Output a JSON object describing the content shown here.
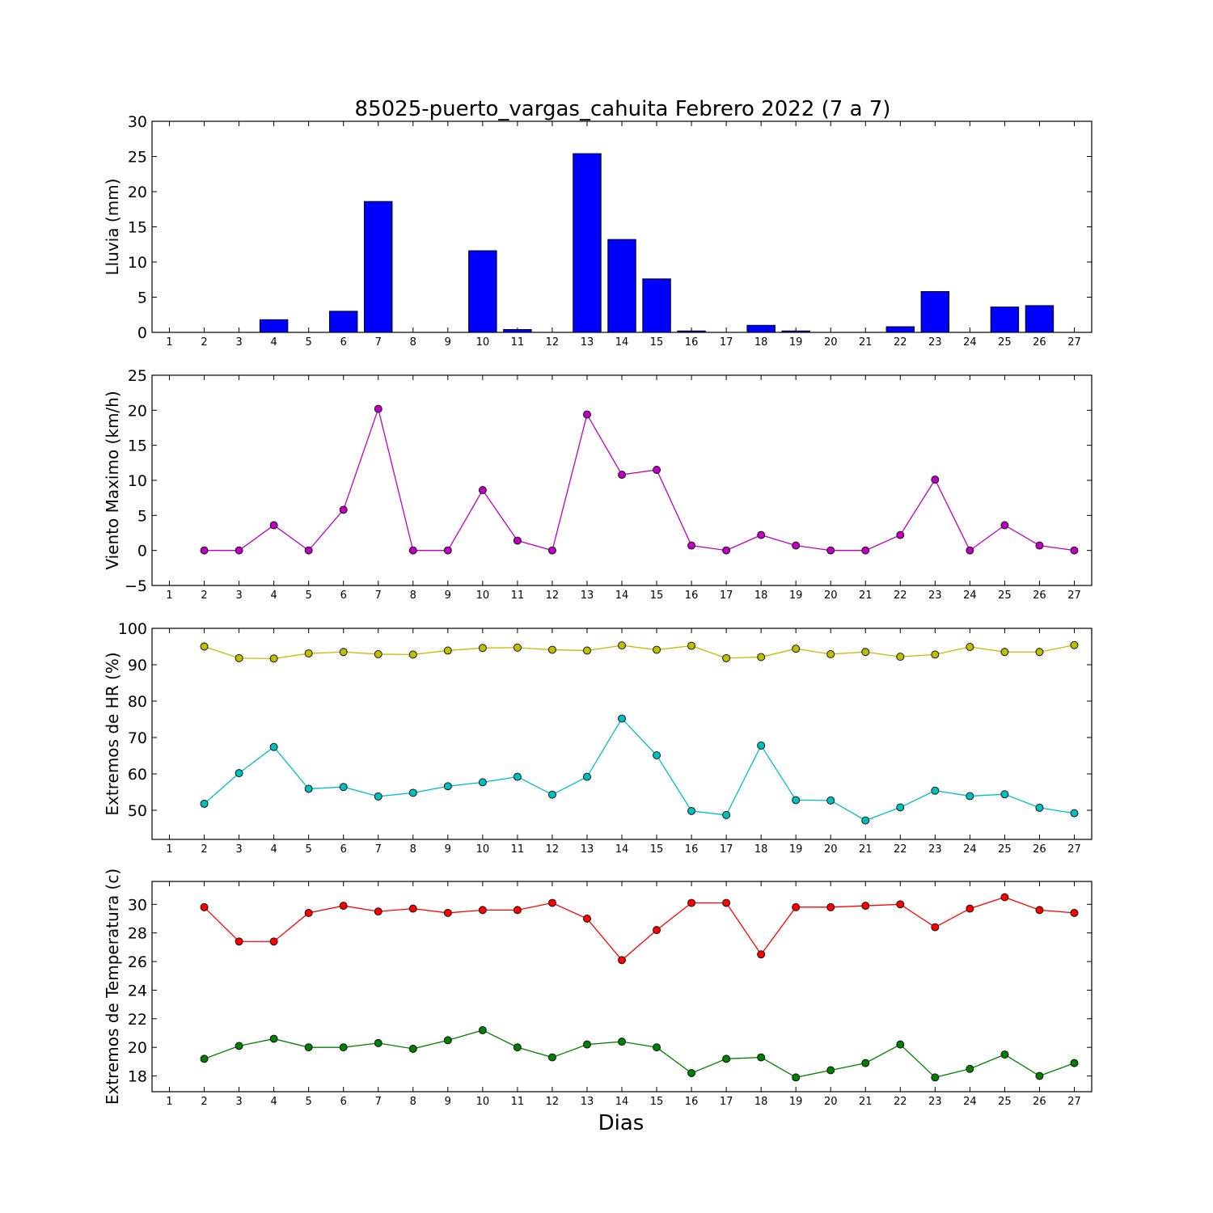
{
  "chart_data": {
    "title": "85025-puerto_vargas_cahuita Febrero 2022  (7 a 7)",
    "xlabel": "Dias",
    "x_ticks": [
      1,
      2,
      3,
      4,
      5,
      6,
      7,
      8,
      9,
      10,
      11,
      12,
      13,
      14,
      15,
      16,
      17,
      18,
      19,
      20,
      21,
      22,
      23,
      24,
      25,
      26,
      27
    ],
    "panels": [
      {
        "type": "bar",
        "ylabel": "Lluvia (mm)",
        "ylim": [
          0,
          30
        ],
        "yticks": [
          0,
          5,
          10,
          15,
          20,
          25,
          30
        ],
        "series": [
          {
            "color": "#0000ff",
            "x": [
              2,
              3,
              4,
              5,
              6,
              7,
              8,
              9,
              10,
              11,
              12,
              13,
              14,
              15,
              16,
              17,
              18,
              19,
              20,
              21,
              22,
              23,
              24,
              25,
              26
            ],
            "values": [
              0,
              0,
              1.8,
              0,
              3.0,
              18.6,
              0,
              0,
              11.6,
              0.4,
              0,
              25.4,
              13.2,
              7.6,
              0.2,
              0,
              1.0,
              0.2,
              0,
              0,
              0.8,
              5.8,
              0,
              3.6,
              3.8
            ]
          }
        ]
      },
      {
        "type": "line",
        "ylabel": "Viento Maximo (km/h)",
        "ylim": [
          -5,
          25
        ],
        "yticks": [
          -5,
          0,
          5,
          10,
          15,
          20,
          25
        ],
        "series": [
          {
            "color": "#bf00bf",
            "x": [
              2,
              3,
              4,
              5,
              6,
              7,
              8,
              9,
              10,
              11,
              12,
              13,
              14,
              15,
              16,
              17,
              18,
              19,
              20,
              21,
              22,
              23,
              24,
              25,
              26,
              27
            ],
            "values": [
              0,
              0,
              3.6,
              0,
              5.8,
              20.2,
              0,
              0,
              8.6,
              1.4,
              0,
              19.4,
              10.8,
              11.5,
              0.7,
              0,
              2.2,
              0.7,
              0,
              0,
              2.2,
              10.1,
              0,
              3.6,
              0.7,
              0
            ]
          }
        ]
      },
      {
        "type": "line",
        "ylabel": "Extremos de HR (%)",
        "ylim": [
          42,
          100
        ],
        "yticks": [
          50,
          60,
          70,
          80,
          90,
          100
        ],
        "series": [
          {
            "color": "#bfbf00",
            "x": [
              2,
              3,
              4,
              5,
              6,
              7,
              8,
              9,
              10,
              11,
              12,
              13,
              14,
              15,
              16,
              17,
              18,
              19,
              20,
              21,
              22,
              23,
              24,
              25,
              26,
              27
            ],
            "values": [
              95,
              91.8,
              91.7,
              93.1,
              93.5,
              92.9,
              92.8,
              93.9,
              94.6,
              94.7,
              94.1,
              93.9,
              95.3,
              94.1,
              95.2,
              91.8,
              92.1,
              94.4,
              92.9,
              93.5,
              92.2,
              92.8,
              94.9,
              93.5,
              93.5,
              95.4
            ]
          },
          {
            "color": "#00bfbf",
            "x": [
              2,
              3,
              4,
              5,
              6,
              7,
              8,
              9,
              10,
              11,
              12,
              13,
              14,
              15,
              16,
              17,
              18,
              19,
              20,
              21,
              22,
              23,
              24,
              25,
              26,
              27
            ],
            "values": [
              51.8,
              60.2,
              67.4,
              55.9,
              56.4,
              53.8,
              54.8,
              56.6,
              57.7,
              59.2,
              54.3,
              59.2,
              75.2,
              65.1,
              49.8,
              48.7,
              67.8,
              52.8,
              52.7,
              47.2,
              50.8,
              55.4,
              53.9,
              54.4,
              50.7,
              49.2
            ]
          }
        ]
      },
      {
        "type": "line",
        "ylabel": "Extremos de Temperatura (c)",
        "ylim": [
          16.9,
          31.6
        ],
        "yticks": [
          18,
          20,
          22,
          24,
          26,
          28,
          30
        ],
        "series": [
          {
            "color": "#ff0000",
            "x": [
              2,
              3,
              4,
              5,
              6,
              7,
              8,
              9,
              10,
              11,
              12,
              13,
              14,
              15,
              16,
              17,
              18,
              19,
              20,
              21,
              22,
              23,
              24,
              25,
              26,
              27
            ],
            "values": [
              29.8,
              27.4,
              27.4,
              29.4,
              29.9,
              29.5,
              29.7,
              29.4,
              29.6,
              29.6,
              30.1,
              29.0,
              26.1,
              28.2,
              30.1,
              30.1,
              26.5,
              29.8,
              29.8,
              29.9,
              30.0,
              28.4,
              29.7,
              30.5,
              29.6,
              29.4
            ]
          },
          {
            "color": "#008000",
            "x": [
              2,
              3,
              4,
              5,
              6,
              7,
              8,
              9,
              10,
              11,
              12,
              13,
              14,
              15,
              16,
              17,
              18,
              19,
              20,
              21,
              22,
              23,
              24,
              25,
              26,
              27
            ],
            "values": [
              19.2,
              20.1,
              20.6,
              20.0,
              20.0,
              20.3,
              19.9,
              20.5,
              21.2,
              20.0,
              19.3,
              20.2,
              20.4,
              20.0,
              18.2,
              19.2,
              19.3,
              17.9,
              18.4,
              18.9,
              20.2,
              17.9,
              18.5,
              19.5,
              18.0,
              18.9
            ]
          }
        ]
      }
    ]
  }
}
